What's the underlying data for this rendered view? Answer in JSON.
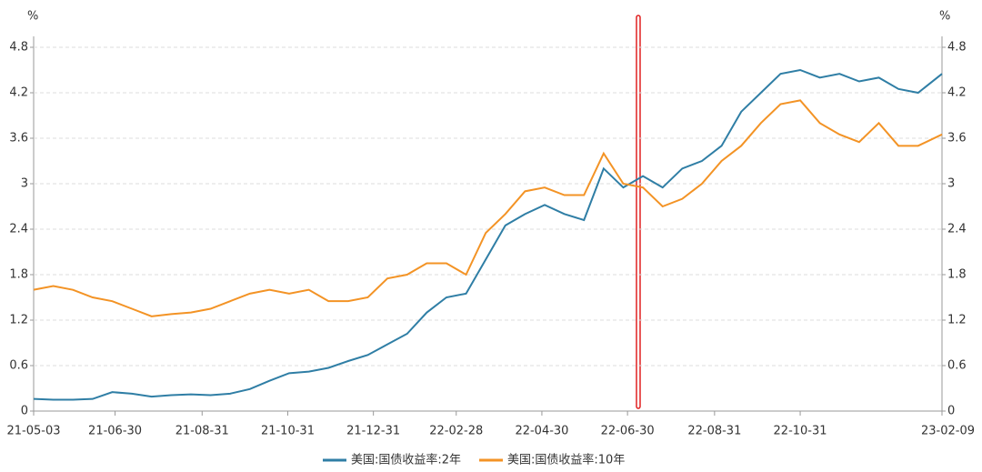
{
  "chart_data": {
    "type": "line",
    "y_label": "%",
    "y2_label": "%",
    "x": [
      "21-05-03",
      "21-05-17",
      "21-05-31",
      "21-06-14",
      "21-06-28",
      "21-07-12",
      "21-07-26",
      "21-08-09",
      "21-08-23",
      "21-09-06",
      "21-09-20",
      "21-10-04",
      "21-10-18",
      "21-11-01",
      "21-11-15",
      "21-11-29",
      "21-12-13",
      "21-12-27",
      "22-01-10",
      "22-01-24",
      "22-02-07",
      "22-02-21",
      "22-03-07",
      "22-03-21",
      "22-04-04",
      "22-04-18",
      "22-05-02",
      "22-05-16",
      "22-05-30",
      "22-06-13",
      "22-06-27",
      "22-07-11",
      "22-07-25",
      "22-08-08",
      "22-08-22",
      "22-09-05",
      "22-09-19",
      "22-10-03",
      "22-10-17",
      "22-10-31",
      "22-11-14",
      "22-11-28",
      "22-12-12",
      "22-12-26",
      "23-01-09",
      "23-01-23",
      "23-02-09"
    ],
    "xticks": [
      "21-05-03",
      "21-06-30",
      "21-08-31",
      "21-10-31",
      "21-12-31",
      "22-02-28",
      "22-04-30",
      "22-06-30",
      "22-08-31",
      "22-10-31",
      "23-02-09"
    ],
    "series": [
      {
        "name": "美国:国债收益率:2年",
        "color": "#2f7ea5",
        "values": [
          0.16,
          0.15,
          0.15,
          0.16,
          0.25,
          0.23,
          0.19,
          0.21,
          0.22,
          0.21,
          0.23,
          0.29,
          0.4,
          0.5,
          0.52,
          0.57,
          0.66,
          0.74,
          0.88,
          1.02,
          1.3,
          1.5,
          1.55,
          2.0,
          2.45,
          2.6,
          2.72,
          2.6,
          2.52,
          3.2,
          2.95,
          3.1,
          2.95,
          3.2,
          3.3,
          3.5,
          3.95,
          4.2,
          4.45,
          4.5,
          4.4,
          4.45,
          4.35,
          4.4,
          4.25,
          4.2,
          4.45
        ]
      },
      {
        "name": "美国:国债收益率:10年",
        "color": "#f39325",
        "values": [
          1.6,
          1.65,
          1.6,
          1.5,
          1.45,
          1.35,
          1.25,
          1.28,
          1.3,
          1.35,
          1.45,
          1.55,
          1.6,
          1.55,
          1.6,
          1.45,
          1.45,
          1.5,
          1.75,
          1.8,
          1.95,
          1.95,
          1.8,
          2.35,
          2.6,
          2.9,
          2.95,
          2.85,
          2.85,
          3.4,
          3.0,
          2.95,
          2.7,
          2.8,
          3.0,
          3.3,
          3.5,
          3.8,
          4.05,
          4.1,
          3.8,
          3.65,
          3.55,
          3.8,
          3.5,
          3.5,
          3.65
        ]
      }
    ],
    "ylim": [
      0,
      4.8
    ],
    "yticks": [
      0,
      0.6,
      1.2,
      1.8,
      2.4,
      3,
      3.6,
      4.2,
      4.8
    ],
    "y2lim": [
      0,
      4.8
    ],
    "y2ticks": [
      0,
      0.6,
      1.2,
      1.8,
      2.4,
      3,
      3.6,
      4.2,
      4.8
    ],
    "grid": true
  }
}
